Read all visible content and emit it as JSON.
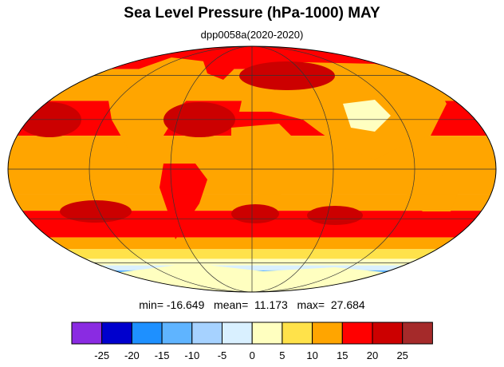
{
  "title": "Sea Level Pressure (hPa-1000) MAY",
  "subtitle": "dpp0058a(2020-2020)",
  "stats": {
    "min_label": "min=",
    "min": "-16.649",
    "mean_label": "mean=",
    "mean": "11.173",
    "max_label": "max=",
    "max": "27.684"
  },
  "colorbar": {
    "colors": [
      "#8a2be2",
      "#0000cd",
      "#1e90ff",
      "#5fb4ff",
      "#a6d2ff",
      "#d9f0ff",
      "#ffffc0",
      "#ffe24a",
      "#ffa500",
      "#ff0000",
      "#cc0000",
      "#a52a2a"
    ],
    "labels": [
      "-25",
      "-20",
      "-15",
      "-10",
      "-5",
      "0",
      "5",
      "10",
      "15",
      "20",
      "25"
    ]
  },
  "map": {
    "projection": "mollweide",
    "bands": [
      {
        "lat_max": 90,
        "lat_min": 65,
        "color": "#ff0000"
      },
      {
        "lat_max": 65,
        "lat_min": 42,
        "color": "#ffa500"
      },
      {
        "lat_max": 42,
        "lat_min": 20,
        "color": "#ff0000"
      },
      {
        "lat_max": 20,
        "lat_min": -15,
        "color": "#ffa500"
      },
      {
        "lat_max": -15,
        "lat_min": -25,
        "color": "#ffa500"
      },
      {
        "lat_max": -25,
        "lat_min": -42,
        "color": "#ff0000"
      },
      {
        "lat_max": -42,
        "lat_min": -50,
        "color": "#ffa500"
      },
      {
        "lat_max": -50,
        "lat_min": -57,
        "color": "#ffe24a"
      },
      {
        "lat_max": -57,
        "lat_min": -62,
        "color": "#ffffc0"
      },
      {
        "lat_max": -62,
        "lat_min": -66,
        "color": "#d9f0ff"
      },
      {
        "lat_max": -66,
        "lat_min": -70,
        "color": "#5fb4ff"
      },
      {
        "lat_max": -70,
        "lat_min": -90,
        "color": "#a6d2ff"
      }
    ],
    "land_color": "#ffe24a",
    "highland_color": "#ffffc0",
    "coast_color": "#000000"
  }
}
